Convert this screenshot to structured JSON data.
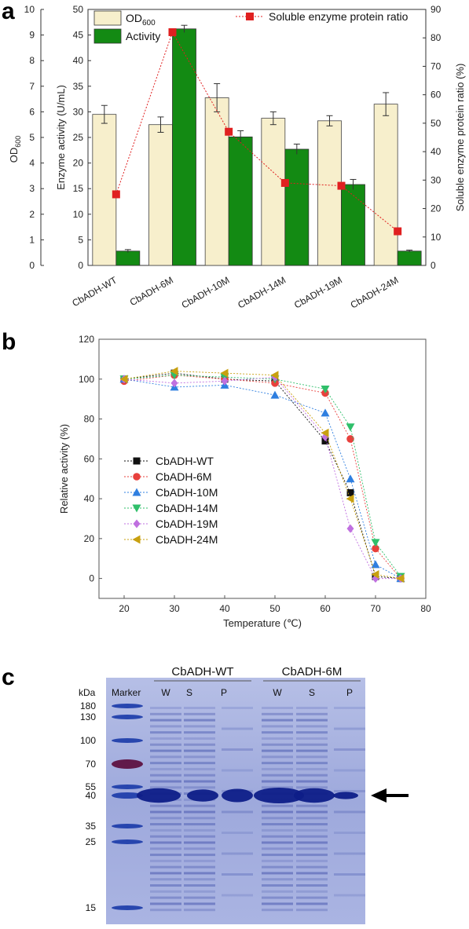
{
  "panels": {
    "a": "a",
    "b": "b",
    "c": "c"
  },
  "chart_data": [
    {
      "id": "a",
      "type": "bar",
      "categories": [
        "CbADH-WT",
        "CbADH-6M",
        "CbADH-10M",
        "CbADH-14M",
        "CbADH-19M",
        "CbADH-24M"
      ],
      "series": [
        {
          "name_main": "OD",
          "name_sub": "600",
          "axis": "y_left_outer",
          "color": "#f7efcc",
          "values": [
            5.9,
            5.5,
            6.55,
            5.75,
            5.65,
            6.3
          ],
          "errors": [
            0.35,
            0.3,
            0.55,
            0.25,
            0.2,
            0.45
          ]
        },
        {
          "name": "Activity",
          "axis": "y_left",
          "color": "#138a13",
          "values": [
            2.8,
            46.2,
            25.1,
            22.7,
            15.8,
            2.8
          ],
          "errors": [
            0.3,
            0.7,
            1.2,
            1.0,
            1.0,
            0.2
          ]
        },
        {
          "name": "Soluble enzyme protein ratio",
          "type": "line",
          "axis": "y_right",
          "color": "#e02020",
          "values": [
            25,
            82,
            47,
            29,
            28,
            12
          ]
        }
      ],
      "y_left_outer": {
        "label_main": "OD",
        "label_sub": "600",
        "lim": [
          0,
          10
        ],
        "ticks": [
          0,
          1,
          2,
          3,
          4,
          5,
          6,
          7,
          8,
          9,
          10
        ]
      },
      "y_left": {
        "label": "Enzyme activity (U/mL)",
        "lim": [
          0,
          50
        ],
        "ticks": [
          0,
          5,
          10,
          15,
          20,
          25,
          30,
          35,
          40,
          45,
          50
        ]
      },
      "y_right": {
        "label": "Soluble enzyme protein ratio (%)",
        "lim": [
          0,
          90
        ],
        "ticks": [
          0,
          10,
          20,
          30,
          40,
          50,
          60,
          70,
          80,
          90
        ]
      },
      "legend_placement": "top"
    },
    {
      "id": "b",
      "type": "line",
      "xlabel": "Temperature (℃)",
      "ylabel": "Relative activity (%)",
      "xlim": [
        15,
        80
      ],
      "ylim": [
        -10,
        120
      ],
      "xticks": [
        20,
        30,
        40,
        50,
        60,
        70,
        80
      ],
      "yticks": [
        0,
        20,
        40,
        60,
        80,
        100,
        120
      ],
      "x": [
        20,
        30,
        40,
        50,
        60,
        65,
        70,
        75
      ],
      "legend_placement": "center-left",
      "series": [
        {
          "name": "CbADH-WT",
          "color": "#111111",
          "marker": "square",
          "values": [
            100,
            103,
            100,
            99,
            69,
            43,
            1,
            0
          ]
        },
        {
          "name": "CbADH-6M",
          "color": "#e8403c",
          "marker": "circle",
          "values": [
            99,
            102,
            100,
            98,
            93,
            70,
            15,
            0
          ]
        },
        {
          "name": "CbADH-10M",
          "color": "#2f7fe0",
          "marker": "triangle-up",
          "values": [
            100,
            96,
            97,
            92,
            83,
            50,
            7,
            0
          ]
        },
        {
          "name": "CbADH-14M",
          "color": "#2fbf6a",
          "marker": "triangle-down",
          "values": [
            100,
            102,
            101,
            100,
            95,
            76,
            18,
            1
          ]
        },
        {
          "name": "CbADH-19M",
          "color": "#c070e0",
          "marker": "diamond",
          "values": [
            100,
            98,
            99,
            101,
            71,
            25,
            0,
            0
          ]
        },
        {
          "name": "CbADH-24M",
          "color": "#c8a010",
          "marker": "triangle-left",
          "values": [
            100,
            104,
            103,
            102,
            73,
            40,
            2,
            0
          ]
        }
      ]
    }
  ],
  "gel": {
    "groups": [
      {
        "label": "CbADH-WT",
        "lanes": [
          "W",
          "S",
          "P"
        ]
      },
      {
        "label": "CbADH-6M",
        "lanes": [
          "W",
          "S",
          "P"
        ]
      }
    ],
    "marker_label": "Marker",
    "unit_label": "kDa",
    "markers": [
      {
        "label": "180",
        "kda": 180
      },
      {
        "label": "130",
        "kda": 130
      },
      {
        "label": "100",
        "kda": 100
      },
      {
        "label": "70",
        "kda": 70
      },
      {
        "label": "55",
        "kda": 55
      },
      {
        "label": "40",
        "kda": 40
      },
      {
        "label": "35",
        "kda": 35
      },
      {
        "label": "25",
        "kda": 25
      },
      {
        "label": "15",
        "kda": 15
      }
    ],
    "target_band_kda": 40,
    "colors": {
      "gel_bg": "#a7b1de",
      "band": "#0e1e88",
      "marker_red": "#5a0a3a"
    }
  }
}
